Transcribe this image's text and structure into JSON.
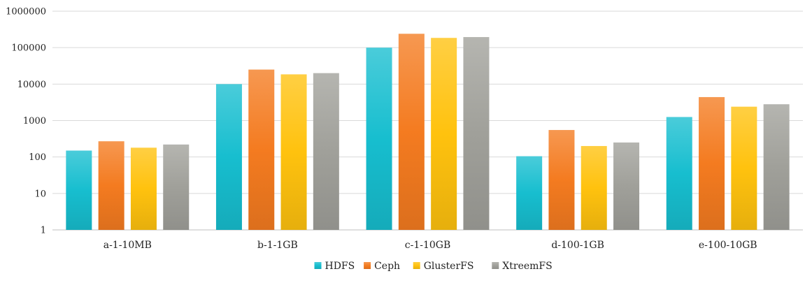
{
  "chart_data": {
    "type": "bar",
    "scale": "log10",
    "title": "",
    "xlabel": "",
    "ylabel": "",
    "ylim": [
      1,
      1000000
    ],
    "ytick_values": [
      1,
      10,
      100,
      1000,
      10000,
      100000,
      1000000
    ],
    "ytick_labels": [
      "1",
      "10",
      "100",
      "1000",
      "10000",
      "100000",
      "1000000"
    ],
    "grid": true,
    "legend_position": "bottom-center",
    "categories": [
      "a-1-10MB",
      "b-1-1GB",
      "c-1-10GB",
      "d-100-1GB",
      "e-100-10GB"
    ],
    "series": [
      {
        "name": "HDFS",
        "color": "#17BECF",
        "values": [
          150,
          10000,
          100000,
          105,
          1250
        ]
      },
      {
        "name": "Ceph",
        "color": "#F47B20",
        "values": [
          270,
          25000,
          240000,
          550,
          4400
        ]
      },
      {
        "name": "GlusterFS",
        "color": "#FFC20E",
        "values": [
          180,
          18500,
          185000,
          200,
          2400
        ]
      },
      {
        "name": "XtreemFS",
        "color": "#A0A09A",
        "values": [
          220,
          20000,
          195000,
          250,
          2800
        ]
      }
    ]
  }
}
